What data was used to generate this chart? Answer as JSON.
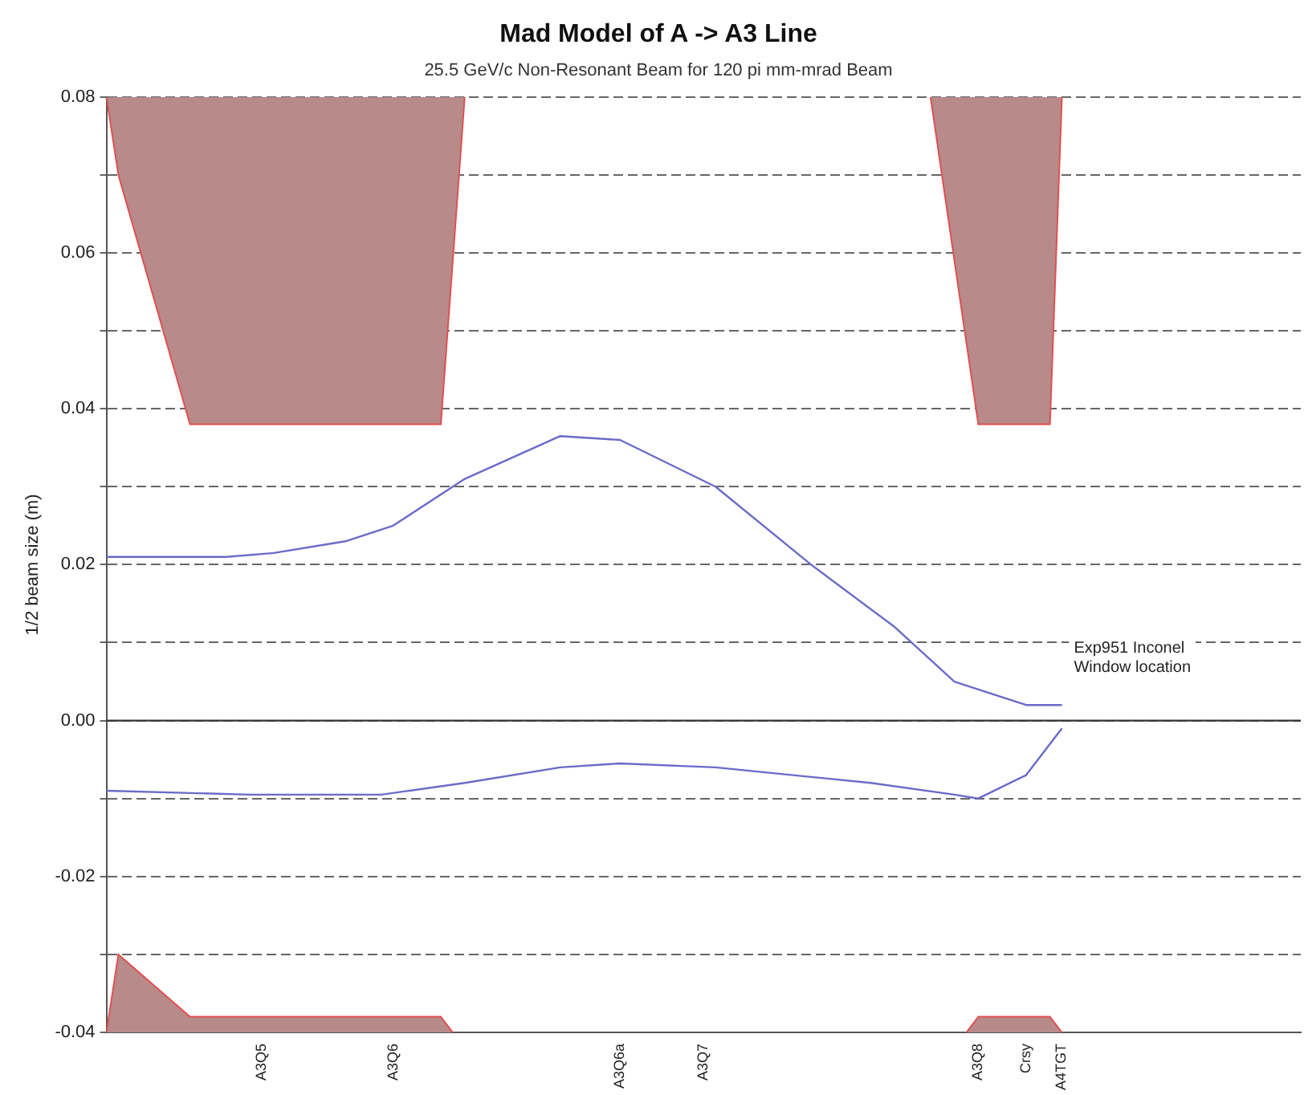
{
  "chart_data": {
    "type": "line",
    "title": "Mad Model of A -> A3 Line",
    "subtitle": "25.5 GeV/c Non-Resonant Beam for 120 pi mm-mrad Beam",
    "ylabel": "1/2 beam size (m)",
    "categories": [
      null,
      null,
      null,
      null,
      null,
      null,
      null,
      null,
      null,
      null,
      null,
      null,
      null,
      "A3Q5",
      null,
      null,
      null,
      null,
      null,
      null,
      null,
      null,
      null,
      null,
      "A3Q6",
      null,
      null,
      null,
      null,
      null,
      null,
      null,
      null,
      null,
      null,
      null,
      null,
      null,
      null,
      null,
      null,
      null,
      null,
      "A3Q6a",
      null,
      null,
      null,
      null,
      null,
      null,
      "A3Q7",
      null,
      null,
      null,
      null,
      null,
      null,
      null,
      null,
      null,
      null,
      null,
      null,
      null,
      null,
      null,
      null,
      null,
      null,
      null,
      null,
      null,
      null,
      "A3Q8",
      null,
      null,
      null,
      "Crsy",
      null,
      null,
      "A4TGT",
      null,
      null,
      null,
      null,
      null,
      null,
      null,
      null,
      null,
      null,
      null,
      null,
      null,
      null,
      null,
      null,
      null,
      null,
      null,
      null
    ],
    "ylim": [
      -0.04,
      0.08
    ],
    "yticks": [
      {
        "value": -0.04,
        "label": "-0.04"
      },
      {
        "value": -0.03,
        "label": null
      },
      {
        "value": -0.02,
        "label": "-0.02"
      },
      {
        "value": -0.01,
        "label": null
      },
      {
        "value": 0,
        "label": "0.00"
      },
      {
        "value": 0.01,
        "label": null
      },
      {
        "value": 0.02,
        "label": "0.02"
      },
      {
        "value": 0.03,
        "label": null
      },
      {
        "value": 0.04,
        "label": "0.04"
      },
      {
        "value": 0.05,
        "label": null
      },
      {
        "value": 0.06,
        "label": "0.06"
      },
      {
        "value": 0.07,
        "label": null
      },
      {
        "value": 0.08,
        "label": "0.08"
      }
    ],
    "grid": "y",
    "legend": false,
    "ref_lines": [
      {
        "axis": "y",
        "value": 0,
        "line_style": "solid",
        "color": "#333333"
      }
    ],
    "annotations": [
      "Exp951 Inconel\nWindow location"
    ],
    "series": [
      {
        "type": "area",
        "color": "#b88a8a",
        "values": [
          0.08,
          0.07,
          null,
          null,
          null,
          null,
          null,
          0.038,
          null,
          null,
          null,
          null,
          null,
          null,
          null,
          null,
          null,
          null,
          null,
          null,
          null,
          null,
          null,
          null,
          null,
          null,
          null,
          null,
          0.038,
          null,
          0.08,
          null,
          null,
          null,
          null,
          null,
          null,
          null,
          null,
          null,
          null,
          null,
          null,
          null,
          null,
          null,
          null,
          null,
          null,
          null,
          null,
          null,
          null,
          null,
          null,
          null,
          null,
          null,
          null,
          null,
          null,
          null,
          null,
          null,
          null,
          null,
          null,
          null,
          null,
          null,
          null,
          null,
          null,
          null,
          null,
          null,
          null,
          null,
          null,
          null,
          null,
          null,
          null,
          null,
          null,
          null,
          null,
          null,
          null,
          null,
          null,
          null,
          null,
          null,
          null,
          null,
          null,
          null,
          null,
          null,
          null
        ]
      },
      {
        "type": "area",
        "color": "#b88a8a",
        "values": [
          null,
          null,
          null,
          null,
          null,
          null,
          null,
          null,
          null,
          null,
          null,
          null,
          null,
          null,
          null,
          null,
          null,
          null,
          null,
          null,
          null,
          null,
          null,
          null,
          null,
          null,
          null,
          null,
          null,
          null,
          null,
          null,
          null,
          null,
          null,
          null,
          null,
          null,
          null,
          null,
          null,
          null,
          null,
          null,
          null,
          null,
          null,
          null,
          null,
          null,
          null,
          null,
          null,
          null,
          null,
          null,
          null,
          null,
          null,
          null,
          null,
          null,
          null,
          null,
          null,
          null,
          null,
          null,
          null,
          0.08,
          null,
          null,
          null,
          0.038,
          null,
          null,
          null,
          null,
          null,
          0.038,
          0.08,
          null,
          null,
          null,
          null,
          null,
          null,
          null,
          null,
          null,
          null,
          null,
          null,
          null,
          null,
          null,
          null,
          null,
          null,
          null,
          null
        ]
      },
      {
        "type": "area",
        "color": "#b88a8a",
        "values": [
          -0.04,
          -0.03,
          null,
          null,
          null,
          null,
          null,
          -0.038,
          null,
          null,
          null,
          null,
          null,
          null,
          null,
          null,
          null,
          null,
          null,
          null,
          null,
          null,
          null,
          null,
          null,
          null,
          null,
          null,
          -0.038,
          -0.04,
          null,
          null,
          null,
          null,
          null,
          null,
          null,
          null,
          null,
          null,
          null,
          null,
          null,
          null,
          null,
          null,
          null,
          null,
          null,
          null,
          null,
          null,
          null,
          null,
          null,
          null,
          null,
          null,
          null,
          null,
          null,
          null,
          null,
          null,
          null,
          null,
          null,
          null,
          null,
          null,
          null,
          null,
          null,
          null,
          null,
          null,
          null,
          null,
          null,
          null,
          null,
          null,
          null,
          null,
          null,
          null,
          null,
          null,
          null,
          null,
          null,
          null,
          null,
          null,
          null,
          null,
          null,
          null,
          null,
          null,
          null
        ]
      },
      {
        "type": "area",
        "color": "#b88a8a",
        "values": [
          null,
          null,
          null,
          null,
          null,
          null,
          null,
          null,
          null,
          null,
          null,
          null,
          null,
          null,
          null,
          null,
          null,
          null,
          null,
          null,
          null,
          null,
          null,
          null,
          null,
          null,
          null,
          null,
          null,
          null,
          null,
          null,
          null,
          null,
          null,
          null,
          null,
          null,
          null,
          null,
          null,
          null,
          null,
          null,
          null,
          null,
          null,
          null,
          null,
          null,
          null,
          null,
          null,
          null,
          null,
          null,
          null,
          null,
          null,
          null,
          null,
          null,
          null,
          null,
          null,
          null,
          null,
          null,
          null,
          null,
          null,
          null,
          -0.04,
          -0.038,
          null,
          null,
          null,
          null,
          null,
          -0.038,
          -0.04,
          null,
          null,
          null,
          null,
          null,
          null,
          null,
          null,
          null,
          null,
          null,
          null,
          null,
          null,
          null,
          null,
          null,
          null,
          null,
          null
        ]
      },
      {
        "color": "#6b6bc8",
        "values": [
          0.021,
          null,
          null,
          null,
          null,
          null,
          null,
          null,
          null,
          null,
          0.021,
          null,
          null,
          null,
          0.0215,
          null,
          null,
          null,
          null,
          null,
          0.023,
          null,
          null,
          null,
          0.025,
          null,
          null,
          null,
          null,
          null,
          0.031,
          null,
          null,
          null,
          null,
          null,
          null,
          null,
          0.0365,
          null,
          null,
          null,
          null,
          0.036,
          null,
          null,
          null,
          null,
          null,
          null,
          null,
          0.03,
          null,
          null,
          null,
          null,
          null,
          null,
          null,
          0.02,
          null,
          null,
          null,
          null,
          null,
          null,
          0.012,
          null,
          null,
          null,
          null,
          0.005,
          null,
          null,
          null,
          null,
          null,
          0.002,
          null,
          null,
          0.002,
          null,
          null,
          null,
          null,
          null,
          null,
          null,
          null,
          null,
          null,
          null,
          null,
          null,
          null,
          null,
          null,
          null,
          null,
          null,
          null
        ]
      },
      {
        "color": "#6b6bc8",
        "values": [
          -0.009,
          null,
          null,
          null,
          null,
          null,
          null,
          null,
          null,
          null,
          null,
          null,
          -0.0095,
          null,
          null,
          null,
          null,
          null,
          null,
          null,
          null,
          null,
          null,
          -0.0095,
          null,
          null,
          null,
          null,
          null,
          null,
          -0.008,
          null,
          null,
          null,
          null,
          null,
          null,
          null,
          -0.006,
          null,
          null,
          null,
          null,
          -0.0055,
          null,
          null,
          null,
          null,
          null,
          null,
          null,
          -0.006,
          null,
          null,
          null,
          null,
          null,
          null,
          null,
          null,
          null,
          null,
          null,
          null,
          -0.008,
          null,
          null,
          null,
          null,
          null,
          null,
          -0.0095,
          null,
          -0.01,
          null,
          null,
          null,
          -0.007,
          null,
          null,
          -0.001,
          null,
          null,
          null,
          null,
          null,
          null,
          null,
          null,
          null,
          null,
          null,
          null,
          null,
          null,
          null,
          null,
          null,
          null,
          null,
          null
        ]
      }
    ]
  }
}
